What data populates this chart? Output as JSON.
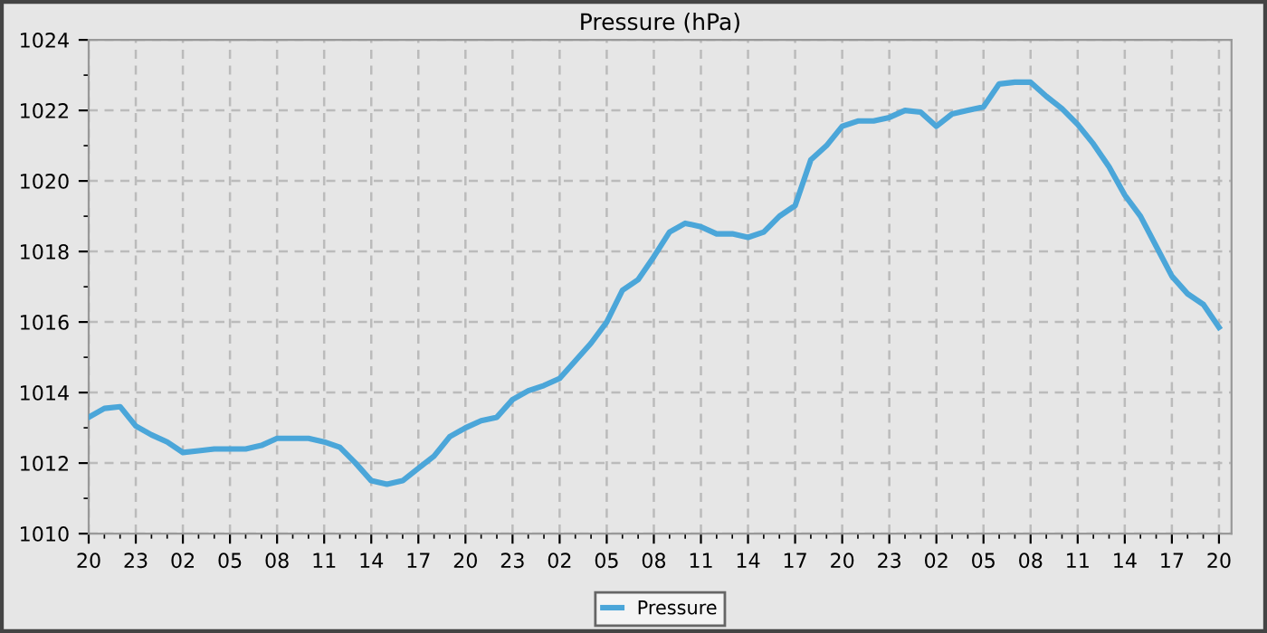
{
  "chart_data": {
    "type": "line",
    "title": "Pressure (hPa)",
    "categories": [
      "20",
      null,
      null,
      "23",
      null,
      null,
      "02",
      null,
      null,
      "05",
      null,
      null,
      "08",
      null,
      null,
      "11",
      null,
      null,
      "14",
      null,
      null,
      "17",
      null,
      null,
      "20",
      null,
      null,
      "23",
      null,
      null,
      "02",
      null,
      null,
      "05",
      null,
      null,
      "08",
      null,
      null,
      "11",
      null,
      null,
      "14",
      null,
      null,
      "17",
      null,
      null,
      "20",
      null,
      null,
      "23",
      null,
      null,
      "02",
      null,
      null,
      "05",
      null,
      null,
      "08",
      null,
      null,
      "11",
      null,
      null,
      "14",
      null,
      null,
      "17",
      null,
      null,
      "20"
    ],
    "series": [
      {
        "name": "Pressure",
        "color": "#4ba6d9",
        "values": [
          1013.3,
          1013.55,
          1013.6,
          1013.05,
          1012.8,
          1012.6,
          1012.3,
          1012.35,
          1012.4,
          1012.4,
          1012.4,
          1012.5,
          1012.7,
          1012.7,
          1012.7,
          1012.6,
          1012.45,
          1012.0,
          1011.5,
          1011.4,
          1011.5,
          1011.85,
          1012.2,
          1012.75,
          1013.0,
          1013.2,
          1013.3,
          1013.8,
          1014.05,
          1014.2,
          1014.4,
          1014.9,
          1015.4,
          1016.0,
          1016.9,
          1017.2,
          1017.85,
          1018.55,
          1018.8,
          1018.7,
          1018.5,
          1018.5,
          1018.4,
          1018.55,
          1019.0,
          1019.3,
          1020.6,
          1021.0,
          1021.55,
          1021.7,
          1021.7,
          1021.8,
          1022.0,
          1021.95,
          1021.55,
          1021.9,
          1022.0,
          1022.1,
          1022.75,
          1022.8,
          1022.8,
          1022.4,
          1022.05,
          1021.6,
          1021.05,
          1020.4,
          1019.6,
          1019.0,
          1018.15,
          1017.3,
          1016.8,
          1016.5,
          1015.85
        ]
      }
    ],
    "ylim": [
      1010,
      1024
    ],
    "yticks": [
      1010,
      1012,
      1014,
      1016,
      1018,
      1020,
      1022,
      1024
    ],
    "grid": true,
    "legend": "bottom",
    "line_style": "solid",
    "marker": "none"
  }
}
